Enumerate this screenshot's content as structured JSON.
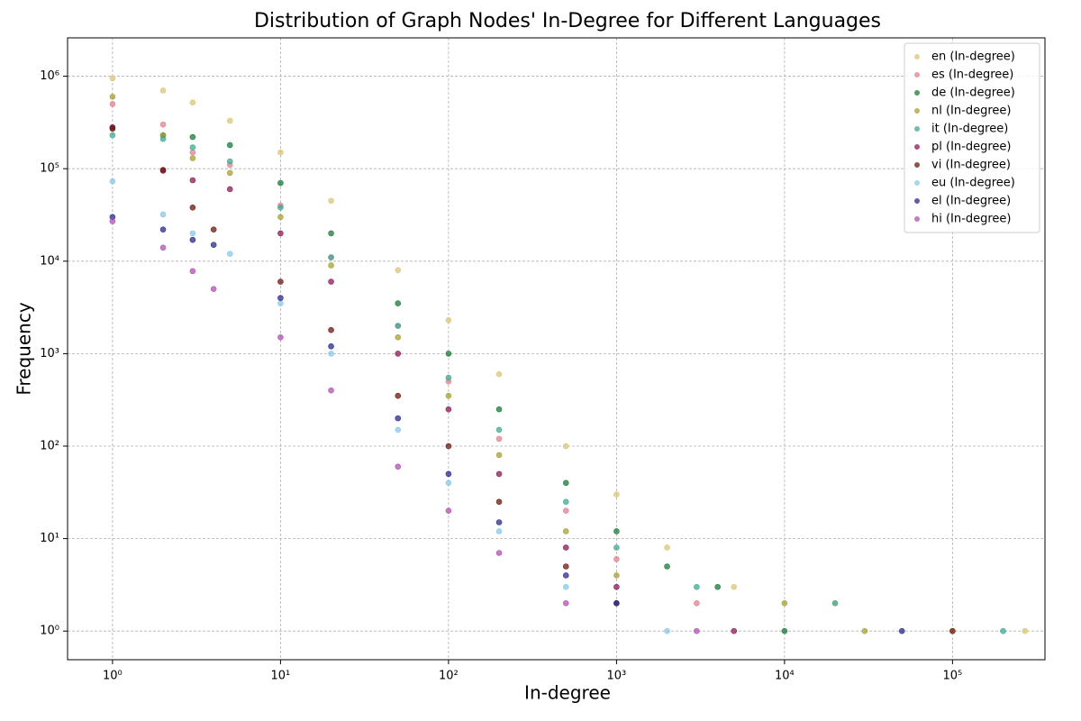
{
  "chart_data": {
    "type": "scatter",
    "title": "Distribution of Graph Nodes' In-Degree for Different Languages",
    "x_label": "In-degree",
    "y_label": "Frequency",
    "xscale": "log",
    "yscale": "log",
    "grid": true,
    "legend": "upper right",
    "xlim": [
      0.54,
      355000
    ],
    "ylim": [
      0.49,
      2600000
    ],
    "xticks": [
      {
        "value": 1,
        "label": "10⁰"
      },
      {
        "value": 10,
        "label": "10¹"
      },
      {
        "value": 100,
        "label": "10²"
      },
      {
        "value": 1000,
        "label": "10³"
      },
      {
        "value": 10000,
        "label": "10⁴"
      },
      {
        "value": 100000,
        "label": "10⁵"
      }
    ],
    "yticks": [
      {
        "value": 1,
        "label": "10⁰"
      },
      {
        "value": 10,
        "label": "10¹"
      },
      {
        "value": 100,
        "label": "10²"
      },
      {
        "value": 1000,
        "label": "10³"
      },
      {
        "value": 10000,
        "label": "10⁴"
      },
      {
        "value": 100000,
        "label": "10⁵"
      },
      {
        "value": 1000000,
        "label": "10⁶"
      }
    ],
    "series": [
      {
        "name": "en (In-degree)",
        "color": "#dcc678",
        "x": [
          1,
          2,
          3,
          5,
          10,
          20,
          50,
          100,
          200,
          500,
          1000,
          2000,
          5000,
          20000,
          100000,
          270000
        ],
        "values": [
          950000,
          700000,
          520000,
          330000,
          150000,
          45000,
          8000,
          2300,
          600,
          100,
          30,
          8,
          3,
          2,
          1,
          1
        ]
      },
      {
        "name": "es (In-degree)",
        "color": "#e0808f",
        "x": [
          1,
          2,
          3,
          5,
          10,
          20,
          50,
          100,
          200,
          500,
          1000,
          3000
        ],
        "values": [
          500000,
          300000,
          150000,
          110000,
          40000,
          11000,
          2000,
          500,
          120,
          20,
          6,
          2
        ]
      },
      {
        "name": "de (In-degree)",
        "color": "#1a7a3a",
        "x": [
          1,
          2,
          3,
          5,
          10,
          20,
          50,
          100,
          200,
          500,
          1000,
          2000,
          4000,
          10000
        ],
        "values": [
          280000,
          230000,
          220000,
          180000,
          70000,
          20000,
          3500,
          1000,
          250,
          40,
          12,
          5,
          3,
          1
        ]
      },
      {
        "name": "nl (In-degree)",
        "color": "#a4a034",
        "x": [
          1,
          2,
          3,
          5,
          10,
          20,
          50,
          100,
          200,
          500,
          1000,
          10000,
          30000
        ],
        "values": [
          600000,
          230000,
          130000,
          90000,
          30000,
          9000,
          1500,
          350,
          80,
          12,
          4,
          2,
          1
        ]
      },
      {
        "name": "it (In-degree)",
        "color": "#40a890",
        "x": [
          1,
          2,
          3,
          5,
          10,
          20,
          50,
          100,
          200,
          500,
          1000,
          3000,
          20000,
          200000
        ],
        "values": [
          230000,
          210000,
          170000,
          120000,
          38000,
          11000,
          2000,
          550,
          150,
          25,
          8,
          3,
          2,
          1
        ]
      },
      {
        "name": "pl (In-degree)",
        "color": "#8b1a55",
        "x": [
          1,
          2,
          3,
          5,
          10,
          20,
          50,
          100,
          200,
          500,
          1000,
          5000
        ],
        "values": [
          280000,
          95000,
          75000,
          60000,
          20000,
          6000,
          1000,
          250,
          50,
          8,
          3,
          1
        ]
      },
      {
        "name": "vi (In-degree)",
        "color": "#6b1a10",
        "x": [
          1,
          2,
          3,
          4,
          10,
          20,
          50,
          100,
          200,
          500,
          1000,
          100000
        ],
        "values": [
          270000,
          97000,
          38000,
          22000,
          6000,
          1800,
          350,
          100,
          25,
          5,
          2,
          1
        ]
      },
      {
        "name": "eu (In-degree)",
        "color": "#88c8e8",
        "x": [
          1,
          2,
          3,
          5,
          10,
          20,
          50,
          100,
          200,
          500,
          2000
        ],
        "values": [
          73000,
          32000,
          20000,
          12000,
          3500,
          1000,
          150,
          40,
          12,
          3,
          1
        ]
      },
      {
        "name": "el (In-degree)",
        "color": "#2a2a8a",
        "x": [
          1,
          2,
          3,
          4,
          10,
          20,
          50,
          100,
          200,
          500,
          1000,
          50000
        ],
        "values": [
          30000,
          22000,
          17000,
          15000,
          4000,
          1200,
          200,
          50,
          15,
          4,
          2,
          1
        ]
      },
      {
        "name": "hi (In-degree)",
        "color": "#b050b0",
        "x": [
          1,
          2,
          3,
          4,
          10,
          20,
          50,
          100,
          200,
          500,
          3000
        ],
        "values": [
          27000,
          14000,
          7800,
          5000,
          1500,
          400,
          60,
          20,
          7,
          2,
          1
        ]
      }
    ]
  }
}
